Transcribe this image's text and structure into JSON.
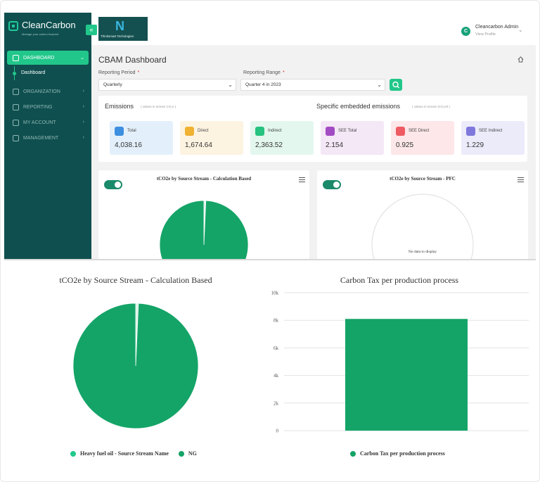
{
  "colors": {
    "sidebar": "#0f4f4f",
    "accent": "#21c78a",
    "pie_main": "#14a467",
    "pie_light": "#d8f3e7",
    "bar": "#14a467"
  },
  "sidebar": {
    "brand": "CleanCarbon",
    "tagline": "Manage your carbon footprint",
    "items": [
      {
        "label": "DASHBOARD",
        "icon": "grid-icon",
        "active": true
      },
      {
        "label": "ORGANIZATION",
        "icon": "building-icon"
      },
      {
        "label": "REPORTING",
        "icon": "report-icon"
      },
      {
        "label": "MY ACCOUNT",
        "icon": "user-icon"
      },
      {
        "label": "MANAGEMENT",
        "icon": "management-icon"
      }
    ],
    "sub_item": "Dashboard",
    "collapse_icon": "double-chevron-left-icon"
  },
  "header": {
    "company_name": "Thinksmart Techologies",
    "user_initial": "C",
    "user_name": "Cleancarbon Admin",
    "user_link": "View Profile"
  },
  "main": {
    "title": "CBAM Dashboard",
    "filters": {
      "period_label": "Reporting Period",
      "period_value": "Quarterly",
      "range_label": "Reporting Range",
      "range_value": "Quarter 4 in 2023",
      "required_mark": "*"
    },
    "emissions": {
      "title": "Emissions",
      "unit": "( values in tonnes CO₂e )",
      "cards": [
        {
          "label": "Total",
          "value": "4,038.16"
        },
        {
          "label": "Direct",
          "value": "1,674.64"
        },
        {
          "label": "Indirect",
          "value": "2,363.52"
        }
      ]
    },
    "see": {
      "title": "Specific embedded emissions",
      "unit": "( values in tonnes tCO₂e/t )",
      "cards": [
        {
          "label": "SEE Total",
          "value": "2.154"
        },
        {
          "label": "SEE Direct",
          "value": "0.925"
        },
        {
          "label": "SEE Indirect",
          "value": "1.229"
        }
      ]
    },
    "mini_charts": [
      {
        "title": "tCO2e by Source Stream - Calculation Based"
      },
      {
        "title": "tCO2e by Source Stream - PFC",
        "empty_text": "No data to display"
      }
    ]
  },
  "chart_data": [
    {
      "type": "pie",
      "title": "tCO2e by Source Stream - Calculation Based",
      "categories": [
        "Heavy fuel oil - Source Stream Name",
        "NG"
      ],
      "values": [
        0.7,
        99.3
      ],
      "colors": [
        "#22c98c",
        "#14a467"
      ]
    },
    {
      "type": "bar",
      "title": "Carbon Tax per production process",
      "series": [
        {
          "name": "Carbon Tax per production process",
          "values": [
            8100
          ]
        }
      ],
      "categories": [
        ""
      ],
      "ylim": [
        0,
        10000
      ],
      "yticks": [
        "0",
        "2k",
        "4k",
        "6k",
        "8k",
        "10k"
      ],
      "grid": true,
      "legend": "bottom"
    }
  ]
}
